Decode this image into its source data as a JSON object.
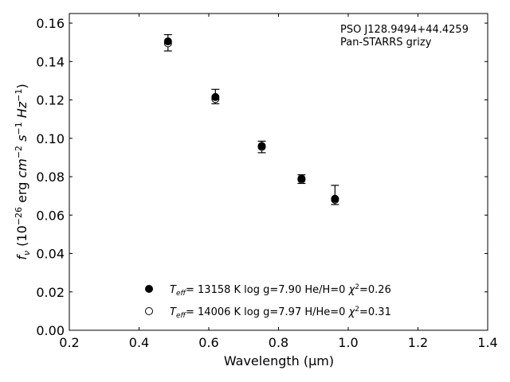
{
  "chart_data": {
    "type": "scatter",
    "annotation": [
      "PSO J128.9494+44.4259",
      "Pan-STARRS grizy"
    ],
    "xlabel": "Wavelength (μm)",
    "ylabel": "fν (10−26 erg cm−2 s−1 Hz−1)",
    "xlim": [
      0.2,
      1.4
    ],
    "ylim": [
      0.0,
      0.165
    ],
    "xticks": [
      0.2,
      0.4,
      0.6,
      0.8,
      1.0,
      1.2,
      1.4
    ],
    "xtick_labels": [
      "0.2",
      "0.4",
      "0.6",
      "0.8",
      "1.0",
      "1.2",
      "1.4"
    ],
    "yticks": [
      0.0,
      0.02,
      0.04,
      0.06,
      0.08,
      0.1,
      0.12,
      0.14,
      0.16
    ],
    "ytick_labels": [
      "0.00",
      "0.02",
      "0.04",
      "0.06",
      "0.08",
      "0.10",
      "0.12",
      "0.14",
      "0.16"
    ],
    "grid": false,
    "legend_position": "bottom-center",
    "observed": {
      "x": [
        0.483,
        0.619,
        0.752,
        0.866,
        0.962
      ],
      "y": [
        0.1497,
        0.1217,
        0.0957,
        0.0787,
        0.0705
      ],
      "err_low": [
        0.1455,
        0.118,
        0.0925,
        0.0765,
        0.0655
      ],
      "err_high": [
        0.154,
        0.1255,
        0.0985,
        0.081,
        0.0755
      ]
    },
    "series": [
      {
        "name": "Teff= 13158 K  log g=7.90  He/H=0  χ2=0.26",
        "marker": "filled",
        "x": [
          0.483,
          0.619,
          0.752,
          0.866,
          0.962
        ],
        "y": [
          0.1505,
          0.1215,
          0.096,
          0.079,
          0.0685
        ]
      },
      {
        "name": "Teff= 14006 K  log g=7.97  H/He=0  χ2=0.31",
        "marker": "open",
        "x": [
          0.483,
          0.619,
          0.752,
          0.866,
          0.962
        ],
        "y": [
          0.1495,
          0.1205,
          0.0955,
          0.0785,
          0.068
        ]
      }
    ]
  }
}
